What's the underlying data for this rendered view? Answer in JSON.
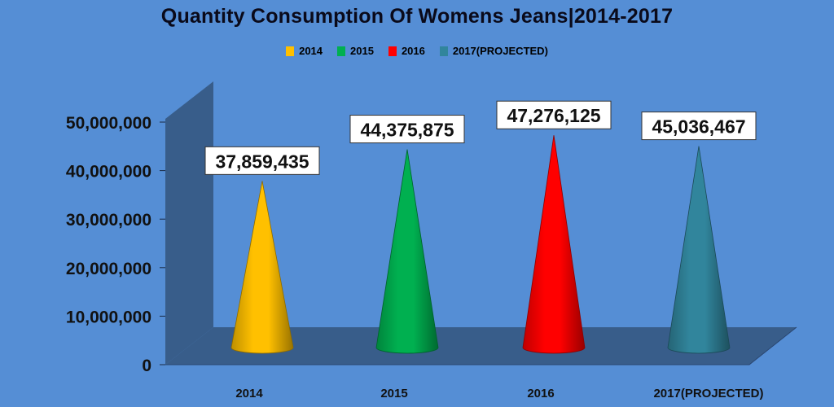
{
  "chart_data": {
    "type": "bar",
    "title": "Quantity Consumption Of Womens Jeans|2014-2017",
    "categories": [
      "2014",
      "2015",
      "2016",
      "2017(PROJECTED)"
    ],
    "values": [
      37859435,
      44375875,
      47276125,
      45036467
    ],
    "data_labels": [
      "37,859,435",
      "44,375,875",
      "47,276,125",
      "45,036,467"
    ],
    "legend": [
      "2014",
      "2015",
      "2016",
      "2017(PROJECTED)"
    ],
    "legend_placement": "top",
    "y_ticks": [
      "0",
      "10,000,000",
      "20,000,000",
      "30,000,000",
      "40,000,000",
      "50,000,000"
    ],
    "ylim": [
      0,
      50000000
    ],
    "colors": [
      "#FFC000",
      "#00B050",
      "#FF0000",
      "#31859C"
    ],
    "grid": false
  }
}
